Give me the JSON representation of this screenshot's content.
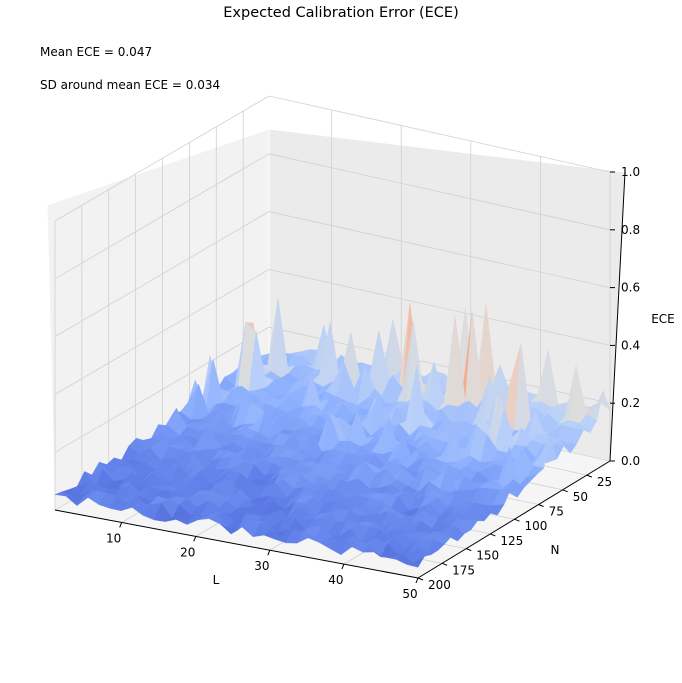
{
  "chart_data": {
    "type": "surface",
    "title": "Expected Calibration Error (ECE)",
    "annotations": [
      "Mean ECE = 0.047",
      "SD around mean ECE = 0.034"
    ],
    "xlabel": "L",
    "ylabel": "N",
    "zlabel": "ECE",
    "x_ticks": [
      10,
      20,
      30,
      40,
      50
    ],
    "y_ticks": [
      25,
      50,
      75,
      100,
      125,
      150,
      175,
      200
    ],
    "z_ticks": [
      "0.0",
      "0.2",
      "0.4",
      "0.6",
      "0.8",
      "1.0"
    ],
    "xlim": [
      1,
      50
    ],
    "ylim": [
      1,
      200
    ],
    "zlim": [
      0,
      1
    ],
    "colormap": "coolwarm",
    "mean_ece": 0.047,
    "sd_ece": 0.034,
    "z_peak": 0.45,
    "grid": true
  }
}
